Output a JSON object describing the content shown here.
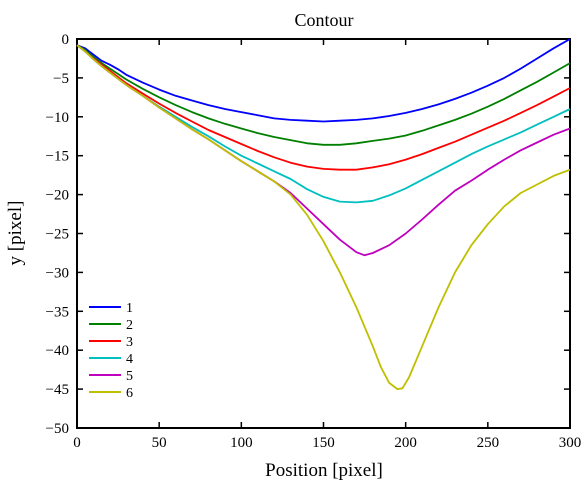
{
  "chart_data": {
    "type": "line",
    "title": "Contour",
    "xlabel": "Position [pixel]",
    "ylabel": "y [pixel]",
    "xlim": [
      0,
      300
    ],
    "ylim": [
      -50,
      0
    ],
    "xticks": [
      0,
      50,
      100,
      150,
      200,
      250,
      300
    ],
    "yticks": [
      0,
      -5,
      -10,
      -15,
      -20,
      -25,
      -30,
      -35,
      -40,
      -45,
      -50
    ],
    "grid": false,
    "legend_position": "bottom-left",
    "series": [
      {
        "name": "1",
        "color": "#0000ff",
        "x": [
          0,
          5,
          10,
          15,
          20,
          25,
          30,
          40,
          50,
          60,
          70,
          80,
          90,
          100,
          110,
          120,
          130,
          140,
          150,
          160,
          170,
          180,
          190,
          200,
          210,
          220,
          230,
          240,
          250,
          260,
          270,
          280,
          290,
          300
        ],
        "y": [
          -0.8,
          -1.2,
          -2.0,
          -2.8,
          -3.3,
          -3.9,
          -4.6,
          -5.6,
          -6.5,
          -7.3,
          -7.9,
          -8.5,
          -9.0,
          -9.4,
          -9.8,
          -10.2,
          -10.4,
          -10.5,
          -10.6,
          -10.5,
          -10.4,
          -10.2,
          -9.9,
          -9.5,
          -9.0,
          -8.4,
          -7.7,
          -6.9,
          -6.0,
          -5.0,
          -3.8,
          -2.5,
          -1.2,
          0
        ]
      },
      {
        "name": "2",
        "color": "#008000",
        "x": [
          0,
          5,
          10,
          15,
          20,
          25,
          30,
          40,
          50,
          60,
          70,
          80,
          90,
          100,
          110,
          120,
          130,
          140,
          150,
          160,
          170,
          180,
          190,
          200,
          210,
          220,
          230,
          240,
          250,
          260,
          270,
          280,
          290,
          300
        ],
        "y": [
          -0.8,
          -1.4,
          -2.3,
          -3.1,
          -3.8,
          -4.5,
          -5.2,
          -6.4,
          -7.5,
          -8.5,
          -9.4,
          -10.2,
          -10.9,
          -11.5,
          -12.1,
          -12.6,
          -13.0,
          -13.4,
          -13.6,
          -13.6,
          -13.4,
          -13.1,
          -12.8,
          -12.4,
          -11.8,
          -11.1,
          -10.4,
          -9.6,
          -8.7,
          -7.7,
          -6.6,
          -5.5,
          -4.3,
          -3.1
        ]
      },
      {
        "name": "3",
        "color": "#ff0000",
        "x": [
          0,
          5,
          10,
          15,
          20,
          25,
          30,
          40,
          50,
          60,
          70,
          80,
          90,
          100,
          110,
          120,
          130,
          140,
          150,
          160,
          170,
          180,
          190,
          200,
          210,
          220,
          230,
          240,
          250,
          260,
          270,
          280,
          290,
          300
        ],
        "y": [
          -0.8,
          -1.6,
          -2.5,
          -3.3,
          -4.1,
          -4.9,
          -5.7,
          -7.0,
          -8.3,
          -9.5,
          -10.6,
          -11.7,
          -12.6,
          -13.5,
          -14.4,
          -15.2,
          -15.9,
          -16.4,
          -16.7,
          -16.8,
          -16.8,
          -16.5,
          -16.1,
          -15.5,
          -14.8,
          -14.0,
          -13.2,
          -12.3,
          -11.4,
          -10.5,
          -9.5,
          -8.5,
          -7.4,
          -6.3
        ]
      },
      {
        "name": "4",
        "color": "#00bfbf",
        "x": [
          0,
          5,
          10,
          15,
          20,
          25,
          30,
          40,
          50,
          60,
          70,
          80,
          90,
          100,
          110,
          120,
          130,
          140,
          150,
          160,
          170,
          180,
          190,
          200,
          210,
          220,
          230,
          240,
          250,
          260,
          270,
          280,
          290,
          300
        ],
        "y": [
          -0.8,
          -1.6,
          -2.6,
          -3.5,
          -4.3,
          -5.1,
          -5.9,
          -7.3,
          -8.7,
          -10.0,
          -11.3,
          -12.5,
          -13.8,
          -15.0,
          -16.0,
          -17.0,
          -18.0,
          -19.3,
          -20.3,
          -20.9,
          -21.0,
          -20.8,
          -20.1,
          -19.2,
          -18.1,
          -17.0,
          -15.9,
          -14.8,
          -13.8,
          -12.9,
          -12.0,
          -11.0,
          -10.0,
          -9.0
        ]
      },
      {
        "name": "5",
        "color": "#bf00bf",
        "x": [
          0,
          5,
          10,
          15,
          20,
          25,
          30,
          40,
          50,
          60,
          70,
          80,
          90,
          100,
          110,
          120,
          130,
          140,
          150,
          160,
          170,
          175,
          180,
          190,
          200,
          210,
          220,
          230,
          240,
          250,
          260,
          270,
          280,
          290,
          300
        ],
        "y": [
          -0.8,
          -1.6,
          -2.6,
          -3.5,
          -4.3,
          -5.1,
          -5.9,
          -7.3,
          -8.8,
          -10.2,
          -11.6,
          -12.9,
          -14.3,
          -15.7,
          -17.0,
          -18.3,
          -19.8,
          -21.8,
          -23.8,
          -25.8,
          -27.4,
          -27.8,
          -27.5,
          -26.5,
          -25.0,
          -23.2,
          -21.3,
          -19.5,
          -18.2,
          -16.8,
          -15.5,
          -14.3,
          -13.3,
          -12.3,
          -11.5
        ]
      },
      {
        "name": "6",
        "color": "#bfbf00",
        "x": [
          0,
          5,
          10,
          15,
          20,
          25,
          30,
          40,
          50,
          60,
          70,
          80,
          90,
          100,
          110,
          120,
          130,
          140,
          150,
          160,
          170,
          180,
          185,
          190,
          195,
          198,
          202,
          210,
          220,
          230,
          240,
          250,
          260,
          270,
          280,
          290,
          300
        ],
        "y": [
          -0.8,
          -1.6,
          -2.6,
          -3.5,
          -4.3,
          -5.1,
          -5.9,
          -7.3,
          -8.8,
          -10.2,
          -11.6,
          -12.9,
          -14.3,
          -15.7,
          -17.0,
          -18.3,
          -20.0,
          -22.6,
          -26.0,
          -30.0,
          -34.5,
          -39.5,
          -42.2,
          -44.2,
          -45.0,
          -44.9,
          -43.5,
          -39.5,
          -34.5,
          -30.0,
          -26.5,
          -23.8,
          -21.5,
          -19.8,
          -18.7,
          -17.6,
          -16.8
        ]
      }
    ]
  }
}
